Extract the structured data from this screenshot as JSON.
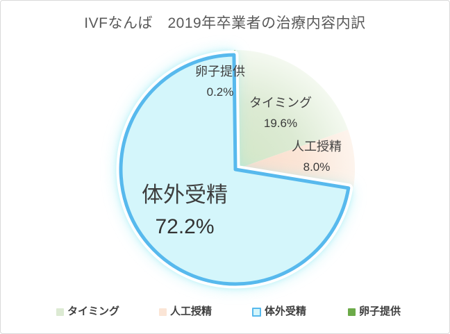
{
  "title": "IVFなんば　2019年卒業者の治療内容内訳",
  "chart_data": {
    "type": "pie",
    "title": "IVFなんば　2019年卒業者の治療内容内訳",
    "categories": [
      "タイミング",
      "人工授精",
      "体外受精",
      "卵子提供"
    ],
    "values": [
      19.6,
      8.0,
      72.2,
      0.2
    ],
    "value_labels": [
      "19.6%",
      "8.0%",
      "72.2%",
      "0.2%"
    ],
    "unit": "%",
    "start_angle_deg": 0,
    "direction": "clockwise",
    "legend_position": "bottom",
    "highlighted_slice": "体外受精",
    "colors": {
      "timing_fill_center": "#d2e6c6",
      "timing_fill": "#dcead3",
      "timing_fill_edge": "#f4f9f0",
      "aih_fill_center": "#fadccb",
      "aih_fill": "#fbe5d6",
      "aih_fill_edge": "#fdf4ed",
      "ivf_fill": "#d4f6fb",
      "ivf_border": "#57b9ed",
      "ivf_glow": "#8ce9f3",
      "egg_donation": "#6caa49"
    }
  },
  "slice_labels": {
    "egg_donation": {
      "name": "卵子提供",
      "value": "0.2%"
    },
    "timing": {
      "name": "タイミング",
      "value": "19.6%"
    },
    "aih": {
      "name": "人工授精",
      "value": "8.0%"
    },
    "ivf": {
      "name": "体外受精",
      "value": "72.2%"
    }
  },
  "legend": {
    "items": [
      {
        "label": "タイミング",
        "swatch": "light-green"
      },
      {
        "label": "人工授精",
        "swatch": "light-peach"
      },
      {
        "label": "体外受精",
        "swatch": "cyan-bordered"
      },
      {
        "label": "卵子提供",
        "swatch": "green"
      }
    ]
  }
}
